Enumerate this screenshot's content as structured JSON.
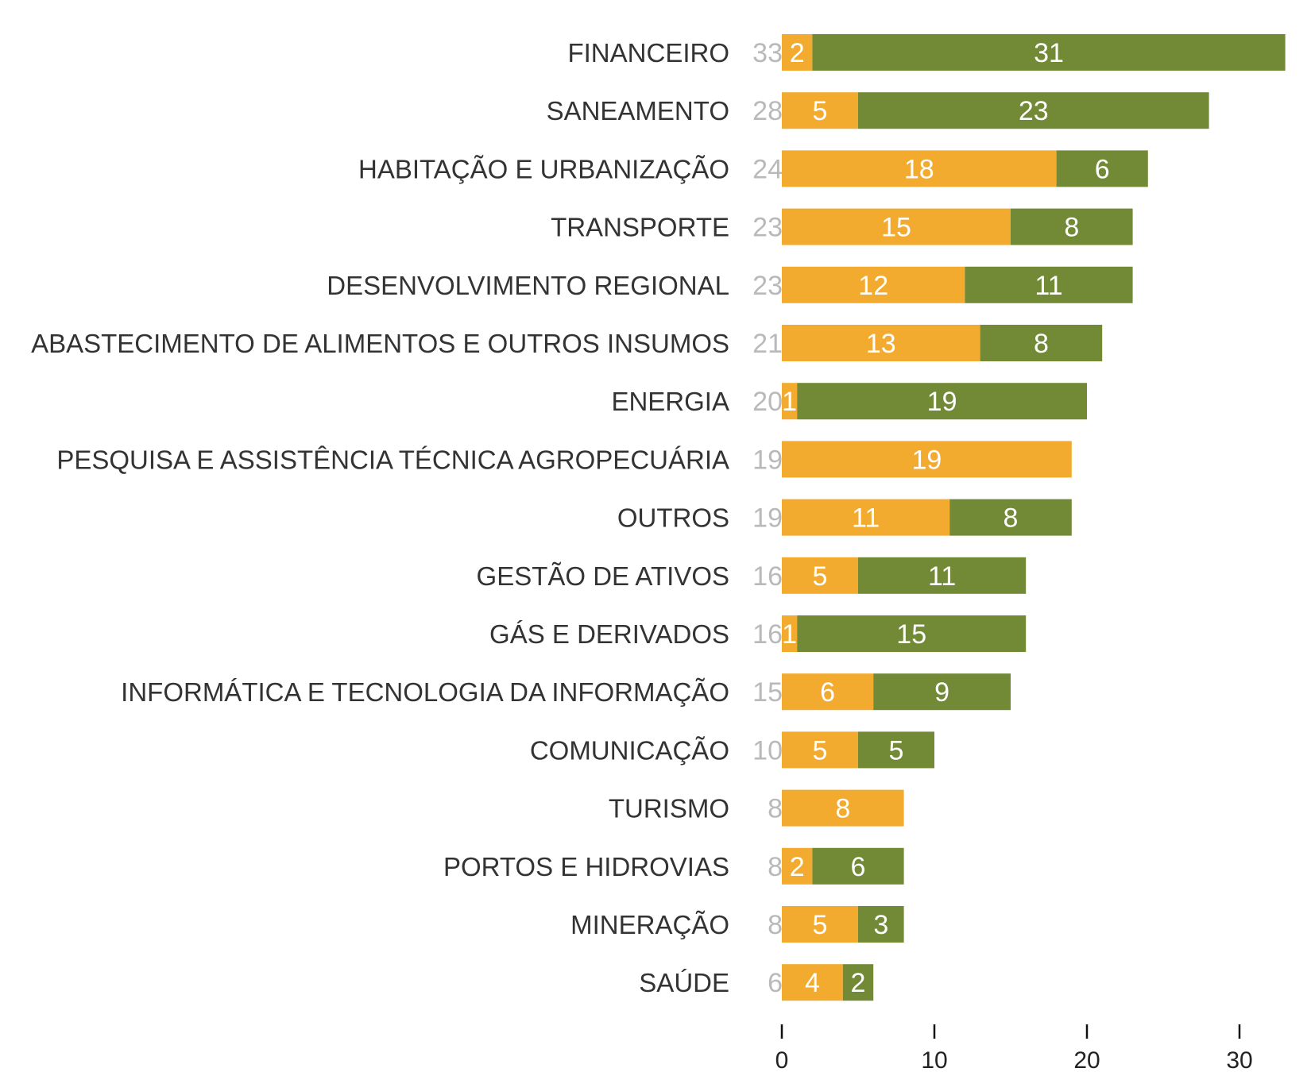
{
  "colors": {
    "series_a": "#f2ab2e",
    "series_b": "#728a36",
    "category_text": "#333333",
    "total_text": "#b9b9b9",
    "value_text": "#ffffff",
    "axis": "#111111"
  },
  "chart_data": {
    "type": "bar",
    "orientation": "horizontal",
    "stacked": true,
    "title": "",
    "xlabel": "",
    "ylabel": "",
    "xlim": [
      0,
      33
    ],
    "xticks": [
      0,
      10,
      20,
      30
    ],
    "grid": false,
    "legend": "none",
    "categories": [
      "FINANCEIRO",
      "SANEAMENTO",
      "HABITAÇÃO E URBANIZAÇÃO",
      "TRANSPORTE",
      "DESENVOLVIMENTO REGIONAL",
      "ABASTECIMENTO DE ALIMENTOS E OUTROS INSUMOS",
      "ENERGIA",
      "PESQUISA E ASSISTÊNCIA TÉCNICA AGROPECUÁRIA",
      "OUTROS",
      "GESTÃO DE ATIVOS",
      "GÁS E DERIVADOS",
      "INFORMÁTICA E TECNOLOGIA DA INFORMAÇÃO",
      "COMUNICAÇÃO",
      "TURISMO",
      "PORTOS E HIDROVIAS",
      "MINERAÇÃO",
      "SAÚDE"
    ],
    "totals": [
      33,
      28,
      24,
      23,
      23,
      21,
      20,
      19,
      19,
      16,
      16,
      15,
      10,
      8,
      8,
      8,
      6
    ],
    "series": [
      {
        "color": "#f2ab2e",
        "values": [
          2,
          5,
          18,
          15,
          12,
          13,
          1,
          19,
          11,
          5,
          1,
          6,
          5,
          8,
          2,
          5,
          4
        ]
      },
      {
        "color": "#728a36",
        "values": [
          31,
          23,
          6,
          8,
          11,
          8,
          19,
          0,
          8,
          11,
          15,
          9,
          5,
          0,
          6,
          3,
          2
        ]
      }
    ]
  }
}
